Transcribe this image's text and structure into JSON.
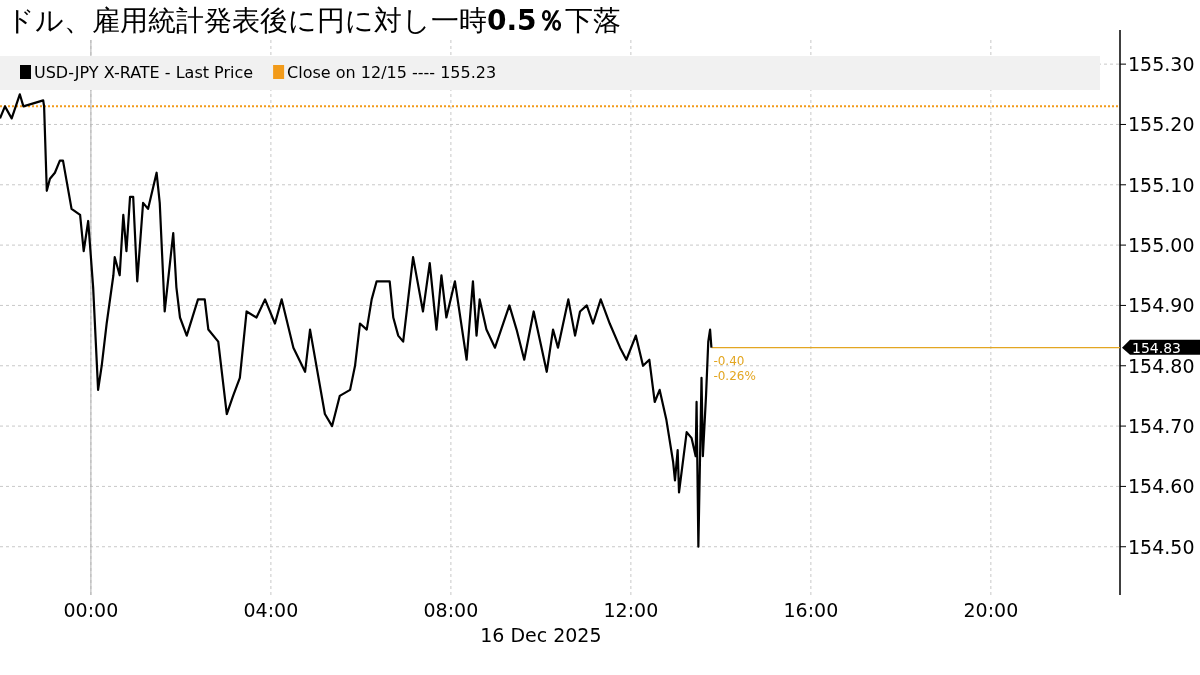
{
  "chart_data": {
    "type": "line",
    "title": "ドル、雇用統計発表後に円に対し一時**0.5％**下落",
    "xlabel": "16 Dec 2025",
    "legend": "top left",
    "grid": true,
    "xlim": [
      -2.02,
      22.87
    ],
    "ylim": [
      154.42,
      155.34
    ],
    "xticks": [
      {
        "value": 0,
        "label": "00:00"
      },
      {
        "value": 4,
        "label": "04:00"
      },
      {
        "value": 8,
        "label": "08:00"
      },
      {
        "value": 12,
        "label": "12:00"
      },
      {
        "value": 16,
        "label": "16:00"
      },
      {
        "value": 20,
        "label": "20:00"
      }
    ],
    "yticks": [
      {
        "value": 154.5,
        "label": "154.50"
      },
      {
        "value": 154.6,
        "label": "154.60"
      },
      {
        "value": 154.7,
        "label": "154.70"
      },
      {
        "value": 154.8,
        "label": "154.80"
      },
      {
        "value": 154.9,
        "label": "154.90"
      },
      {
        "value": 155.0,
        "label": "155.00"
      },
      {
        "value": 155.1,
        "label": "155.10"
      },
      {
        "value": 155.2,
        "label": "155.20"
      },
      {
        "value": 155.3,
        "label": "155.30"
      }
    ],
    "ref_lines": [
      {
        "axis": "y",
        "value": 155.23,
        "label": "Close on 12/15 ---- 155.23",
        "color": "#f29b1a",
        "line_style": "dotted"
      },
      {
        "axis": "y",
        "value": 154.83,
        "label": "154.83",
        "color": "#e3a622",
        "line_style": "solid"
      },
      {
        "axis": "x",
        "value": 0,
        "color": "#b0b0b0",
        "line_style": "solid"
      }
    ],
    "annotations": [
      "-0.40",
      "-0.26%"
    ],
    "series": [
      {
        "name": "USD-JPY X-RATE - Last Price",
        "color": "#000000",
        "x": [
          -2.02,
          -1.91,
          -1.76,
          -1.58,
          -1.5,
          -1.06,
          -1.04,
          -0.98,
          -0.91,
          -0.8,
          -0.69,
          -0.62,
          -0.43,
          -0.24,
          -0.16,
          -0.06,
          0.05,
          0.16,
          0.24,
          0.35,
          0.5,
          0.53,
          0.64,
          0.72,
          0.79,
          0.87,
          0.94,
          1.03,
          1.16,
          1.27,
          1.46,
          1.53,
          1.61,
          1.64,
          1.83,
          1.9,
          1.98,
          2.13,
          2.38,
          2.53,
          2.61,
          2.83,
          3.02,
          3.16,
          3.31,
          3.46,
          3.68,
          3.87,
          4.09,
          4.24,
          4.5,
          4.76,
          4.87,
          5.2,
          5.36,
          5.53,
          5.76,
          5.87,
          5.98,
          6.13,
          6.24,
          6.35,
          6.64,
          6.72,
          6.83,
          6.94,
          7.16,
          7.38,
          7.53,
          7.68,
          7.79,
          7.9,
          8.09,
          8.35,
          8.49,
          8.57,
          8.64,
          8.79,
          8.98,
          9.3,
          9.46,
          9.63,
          9.84,
          10.13,
          10.27,
          10.38,
          10.61,
          10.76,
          10.87,
          11.02,
          11.16,
          11.33,
          11.53,
          11.76,
          11.9,
          12.11,
          12.27,
          12.41,
          12.53,
          12.64,
          12.79,
          12.94,
          12.98,
          13.04,
          13.07,
          13.24,
          13.35,
          13.44,
          13.46,
          13.5,
          13.57,
          13.6,
          13.67,
          13.72,
          13.76,
          13.79
        ],
        "values": [
          155.21,
          155.23,
          155.21,
          155.25,
          155.23,
          155.24,
          155.23,
          155.09,
          155.11,
          155.12,
          155.14,
          155.14,
          155.06,
          155.05,
          154.99,
          155.04,
          154.93,
          154.76,
          154.8,
          154.87,
          154.95,
          154.98,
          154.95,
          155.05,
          154.99,
          155.08,
          155.08,
          154.94,
          155.07,
          155.06,
          155.12,
          155.07,
          154.94,
          154.89,
          155.02,
          154.93,
          154.88,
          154.85,
          154.91,
          154.91,
          154.86,
          154.84,
          154.72,
          154.75,
          154.78,
          154.89,
          154.88,
          154.91,
          154.87,
          154.91,
          154.83,
          154.79,
          154.86,
          154.72,
          154.7,
          154.75,
          154.76,
          154.8,
          154.87,
          154.86,
          154.91,
          154.94,
          154.94,
          154.88,
          154.85,
          154.84,
          154.98,
          154.89,
          154.97,
          154.86,
          154.95,
          154.88,
          154.94,
          154.81,
          154.94,
          154.85,
          154.91,
          154.86,
          154.83,
          154.9,
          154.86,
          154.81,
          154.89,
          154.79,
          154.86,
          154.83,
          154.91,
          154.85,
          154.89,
          154.9,
          154.87,
          154.91,
          154.87,
          154.83,
          154.81,
          154.85,
          154.8,
          154.81,
          154.74,
          154.76,
          154.71,
          154.64,
          154.61,
          154.66,
          154.59,
          154.69,
          154.68,
          154.65,
          154.74,
          154.5,
          154.78,
          154.65,
          154.75,
          154.84,
          154.86,
          154.83
        ]
      }
    ]
  }
}
